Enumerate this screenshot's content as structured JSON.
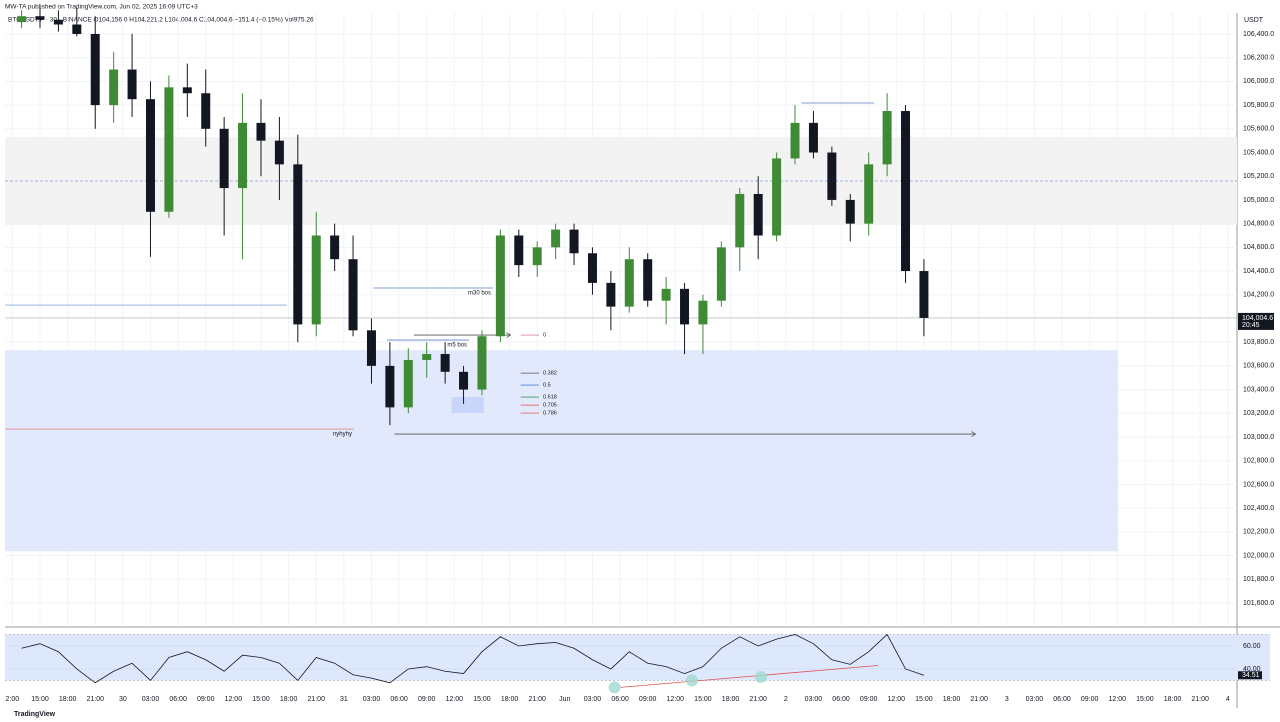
{
  "chart_data": {
    "type": "candlestick",
    "title": "MW-TA published on TradingView.com, Jun 02, 2025 16:09 UTC+3",
    "subtitle": "BTCUSDT.P · 30 · BINANCE  O104,156.0  H104,221.2  L104,004.6  C104,004.6  −151.4 (−0.15%)  Vol975.26",
    "y_axis_label": "USDT",
    "footer": "TradingView",
    "up_color": "#3f8a35",
    "down_color": "#131722",
    "grid": true,
    "xlim": [
      -0.8,
      133
    ],
    "ylim": [
      101414,
      106577
    ],
    "x": [
      1,
      3,
      5,
      7,
      9,
      11,
      13,
      15,
      17,
      19,
      21,
      23,
      25,
      27,
      29,
      31,
      33,
      35,
      37,
      39,
      41,
      43,
      45,
      47,
      49,
      51,
      53,
      55,
      57,
      59,
      61,
      63,
      65,
      67,
      69,
      71,
      73,
      75,
      77,
      79,
      81,
      83,
      85,
      87,
      89,
      91,
      93,
      95,
      97,
      99
    ],
    "open": [
      106500,
      106550,
      106520,
      106480,
      106400,
      105800,
      106100,
      105850,
      104900,
      105950,
      105900,
      105600,
      105100,
      105650,
      105500,
      105300,
      103950,
      104700,
      104500,
      103900,
      103600,
      103250,
      103650,
      103700,
      103550,
      103400,
      103850,
      104700,
      104450,
      104600,
      104750,
      104550,
      104300,
      104100,
      104500,
      104150,
      104250,
      103950,
      104150,
      104600,
      105050,
      104700,
      105350,
      105650,
      105400,
      105000,
      104800,
      105300,
      105750,
      104400
    ],
    "high": [
      106600,
      106620,
      106600,
      106620,
      106550,
      106250,
      106400,
      106000,
      106050,
      106150,
      106100,
      105700,
      105900,
      105850,
      105700,
      105550,
      104900,
      104800,
      104700,
      104000,
      103800,
      103750,
      103800,
      103800,
      103600,
      103900,
      104750,
      104750,
      104650,
      104800,
      104800,
      104600,
      104400,
      104600,
      104550,
      104350,
      104300,
      104200,
      104650,
      105100,
      105200,
      105400,
      105800,
      105750,
      105450,
      105050,
      105400,
      105900,
      105800,
      104500
    ],
    "low": [
      106450,
      106450,
      106420,
      106380,
      105600,
      105650,
      105700,
      104520,
      104850,
      105700,
      105450,
      104700,
      104500,
      105200,
      105000,
      103800,
      103850,
      104400,
      103850,
      103450,
      103100,
      103200,
      103500,
      103450,
      103280,
      103350,
      103800,
      104350,
      104350,
      104500,
      104450,
      104200,
      103900,
      104050,
      104100,
      103950,
      103700,
      103700,
      104100,
      104400,
      104500,
      104650,
      105300,
      105350,
      104950,
      104650,
      104700,
      105200,
      104300,
      103850
    ],
    "close": [
      106550,
      106520,
      106480,
      106400,
      105800,
      106100,
      105850,
      104900,
      105950,
      105900,
      105600,
      105100,
      105650,
      105500,
      105300,
      103950,
      104700,
      104500,
      103900,
      103600,
      103250,
      103650,
      103700,
      103550,
      103400,
      103850,
      104700,
      104450,
      104600,
      104750,
      104550,
      104300,
      104100,
      104500,
      104150,
      104250,
      103950,
      104150,
      104600,
      105050,
      104700,
      105350,
      105650,
      105400,
      105000,
      104800,
      105300,
      105750,
      104400,
      104004.6
    ],
    "xticks": [
      {
        "value": 0,
        "label": "2:00"
      },
      {
        "value": 3,
        "label": "15:00"
      },
      {
        "value": 6,
        "label": "18:00"
      },
      {
        "value": 9,
        "label": "21:00"
      },
      {
        "value": 12,
        "label": "30"
      },
      {
        "value": 15,
        "label": "03:00"
      },
      {
        "value": 18,
        "label": "06:00"
      },
      {
        "value": 21,
        "label": "09:00"
      },
      {
        "value": 24,
        "label": "12:00"
      },
      {
        "value": 27,
        "label": "15:00"
      },
      {
        "value": 30,
        "label": "18:00"
      },
      {
        "value": 33,
        "label": "21:00"
      },
      {
        "value": 36,
        "label": "31"
      },
      {
        "value": 39,
        "label": "03:00"
      },
      {
        "value": 42,
        "label": "06:00"
      },
      {
        "value": 45,
        "label": "09:00"
      },
      {
        "value": 48,
        "label": "12:00"
      },
      {
        "value": 51,
        "label": "15:00"
      },
      {
        "value": 54,
        "label": "18:00"
      },
      {
        "value": 57,
        "label": "21:00"
      },
      {
        "value": 60,
        "label": "Jun"
      },
      {
        "value": 63,
        "label": "03:00"
      },
      {
        "value": 66,
        "label": "06:00"
      },
      {
        "value": 69,
        "label": "09:00"
      },
      {
        "value": 72,
        "label": "12:00"
      },
      {
        "value": 75,
        "label": "15:00"
      },
      {
        "value": 78,
        "label": "18:00"
      },
      {
        "value": 81,
        "label": "21:00"
      },
      {
        "value": 84,
        "label": "2"
      },
      {
        "value": 87,
        "label": "03:00"
      },
      {
        "value": 90,
        "label": "06:00"
      },
      {
        "value": 93,
        "label": "09:00"
      },
      {
        "value": 96,
        "label": "12:00"
      },
      {
        "value": 99,
        "label": "15:00"
      },
      {
        "value": 102,
        "label": "18:00"
      },
      {
        "value": 105,
        "label": "21:00"
      },
      {
        "value": 108,
        "label": "3"
      },
      {
        "value": 111,
        "label": "03:00"
      },
      {
        "value": 114,
        "label": "06:00"
      },
      {
        "value": 117,
        "label": "09:00"
      },
      {
        "value": 120,
        "label": "12:00"
      },
      {
        "value": 123,
        "label": "15:00"
      },
      {
        "value": 126,
        "label": "18:00"
      },
      {
        "value": 129,
        "label": "21:00"
      },
      {
        "value": 132,
        "label": "4"
      }
    ],
    "yticks": [
      {
        "value": 106400,
        "label": "106,400.0"
      },
      {
        "value": 106200,
        "label": "106,200.0"
      },
      {
        "value": 106000,
        "label": "106,000.0"
      },
      {
        "value": 105800,
        "label": "105,800.0"
      },
      {
        "value": 105600,
        "label": "105,600.0"
      },
      {
        "value": 105400,
        "label": "105,400.0"
      },
      {
        "value": 105200,
        "label": "105,200.0"
      },
      {
        "value": 105000,
        "label": "105,000.0"
      },
      {
        "value": 104800,
        "label": "104,800.0"
      },
      {
        "value": 104600,
        "label": "104,600.0"
      },
      {
        "value": 104400,
        "label": "104,400.0"
      },
      {
        "value": 104200,
        "label": "104,200.0"
      },
      {
        "value": 103800,
        "label": "103,800.0"
      },
      {
        "value": 103600,
        "label": "103,600.0"
      },
      {
        "value": 103400,
        "label": "103,400.0"
      },
      {
        "value": 103200,
        "label": "103,200.0"
      },
      {
        "value": 103000,
        "label": "103,000.0"
      },
      {
        "value": 102800,
        "label": "102,800.0"
      },
      {
        "value": 102600,
        "label": "102,600.0"
      },
      {
        "value": 102400,
        "label": "102,400.0"
      },
      {
        "value": 102200,
        "label": "102,200.0"
      },
      {
        "value": 102000,
        "label": "102,000.0"
      },
      {
        "value": 101800,
        "label": "101,800.0"
      },
      {
        "value": 101600,
        "label": "101,600.0"
      }
    ],
    "last_price": {
      "value": 104004.6,
      "label": "104,004.6",
      "countdown": "20:45"
    },
    "zones": [
      {
        "from": 104788,
        "to": 105531,
        "x": [
          -0.8,
          133
        ],
        "color": "#f3f3f3"
      },
      {
        "from": 102036,
        "to": 103733,
        "x": [
          -0.8,
          120.1
        ],
        "color": "#e3e9fc"
      },
      {
        "from": 103202,
        "to": 103337,
        "x": [
          47.7,
          51.2
        ],
        "color": "#c9d6fb"
      }
    ],
    "lines": [
      {
        "price": 105160,
        "x": [
          -0.8,
          133
        ],
        "color": "#8c9be0",
        "dashed": true
      },
      {
        "price": 104113,
        "x": [
          -0.8,
          29.8
        ],
        "color": "#86acd9"
      },
      {
        "price": 103067,
        "x": [
          -0.8,
          37.1
        ],
        "color": "#e08a8a",
        "label": "nyhyhy",
        "label_color": "#d05050"
      },
      {
        "price": 104257,
        "x": [
          39.2,
          52.2
        ],
        "color": "#5b7fc7",
        "label": "m30 bos"
      },
      {
        "price": 103818,
        "x": [
          40.7,
          49.6
        ],
        "color": "#5b7fc7",
        "label": "m5 bos"
      },
      {
        "price": 103860,
        "x": [
          43.6,
          54.1
        ],
        "color": "#555",
        "arrow": true
      },
      {
        "price": 103025,
        "x": [
          41.5,
          104.6
        ],
        "color": "#555",
        "arrow": true
      },
      {
        "price": 105818,
        "x": [
          85.7,
          93.6
        ],
        "color": "#5b7fc7"
      }
    ],
    "fib": {
      "x": [
        55.2,
        57.2
      ],
      "levels": [
        {
          "label": "0",
          "price": 103860,
          "color": "#d88aa8"
        },
        {
          "label": "0.382",
          "price": 103539,
          "color": "#555"
        },
        {
          "label": "0.5",
          "price": 103438,
          "color": "#4a7fd8"
        },
        {
          "label": "0.618",
          "price": 103337,
          "color": "#3f9a5a"
        },
        {
          "label": "0.705",
          "price": 103269,
          "color": "#e05050"
        },
        {
          "label": "0.786",
          "price": 103202,
          "color": "#e07070"
        }
      ]
    },
    "rsi": {
      "type": "line",
      "color": "#131722",
      "ylim": [
        21.7,
        73.9
      ],
      "band": [
        30,
        70
      ],
      "yticks": [
        {
          "value": 60,
          "label": "60.00"
        },
        {
          "value": 40,
          "label": "40.00"
        }
      ],
      "values": [
        58,
        62,
        55,
        40,
        28,
        38,
        45,
        30,
        50,
        55,
        48,
        38,
        52,
        50,
        45,
        30,
        50,
        45,
        35,
        32,
        28,
        40,
        42,
        38,
        36,
        55,
        68,
        60,
        62,
        63,
        58,
        48,
        40,
        55,
        45,
        42,
        36,
        42,
        58,
        68,
        60,
        66,
        70,
        62,
        48,
        44,
        55,
        70,
        40,
        34.51
      ],
      "trend": {
        "x": [
          66,
          94
        ],
        "values": [
          24,
          43
        ],
        "color": "#e05050"
      },
      "markers": {
        "x": [
          65.4,
          73.8,
          81.3
        ],
        "values": [
          24,
          30,
          33
        ],
        "color": "#9fd9d0"
      }
    }
  }
}
